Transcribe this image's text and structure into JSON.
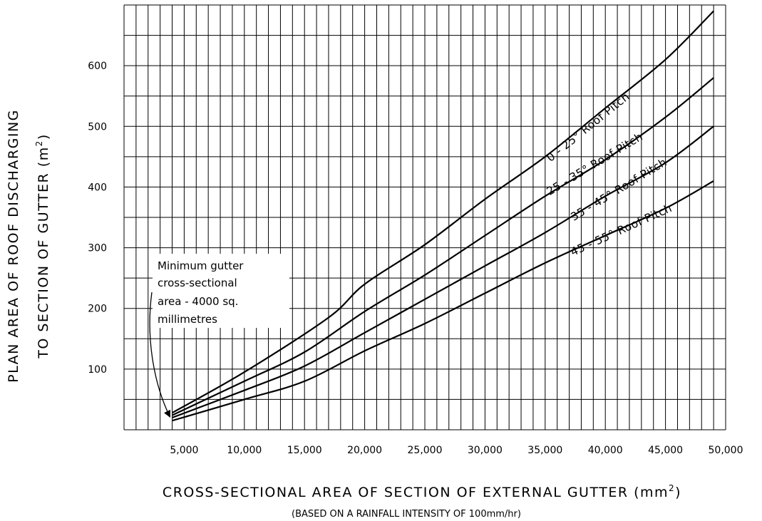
{
  "chart_data": {
    "type": "line",
    "x_ticks": [
      "5,000",
      "10,000",
      "15,000",
      "20,000",
      "25,000",
      "30,000",
      "35,000",
      "40,000",
      "45,000",
      "50,000"
    ],
    "y_ticks": [
      "100",
      "200",
      "300",
      "400",
      "500",
      "600"
    ],
    "xlabel_main": "CROSS-SECTIONAL AREA OF SECTION OF EXTERNAL GUTTER (mm",
    "xlabel_sup": "2",
    "xlabel_end": ")",
    "xlabel_sub": "(BASED ON A RAINFALL INTENSITY OF 100mm/hr)",
    "ylabel_line1": "PLAN AREA OF ROOF DISCHARGING",
    "ylabel_line2_main": "TO SECTION OF GUTTER (m",
    "ylabel_line2_sup": "2",
    "ylabel_line2_end": ")",
    "xlim": [
      0,
      50000
    ],
    "ylim": [
      0,
      700
    ],
    "grid": true,
    "grid_x_step": 1000,
    "grid_y_step": 50,
    "series": [
      {
        "name": "0 - 25° Roof Pitch",
        "x": [
          4000,
          10000,
          17000,
          20000,
          25000,
          30000,
          35000,
          40000,
          45000,
          49000
        ],
        "y": [
          28,
          95,
          185,
          240,
          305,
          380,
          450,
          530,
          610,
          690
        ]
      },
      {
        "name": "25 - 35° Roof Pitch",
        "x": [
          4000,
          10000,
          15000,
          20000,
          25000,
          30000,
          35000,
          40000,
          45000,
          49000
        ],
        "y": [
          24,
          80,
          128,
          195,
          255,
          320,
          385,
          445,
          515,
          580
        ]
      },
      {
        "name": "35 - 45° Roof Pitch",
        "x": [
          4000,
          10000,
          15000,
          20000,
          25000,
          30000,
          35000,
          40000,
          45000,
          49000
        ],
        "y": [
          20,
          65,
          105,
          160,
          215,
          270,
          325,
          385,
          440,
          500
        ]
      },
      {
        "name": "45 - 55° Roof Pitch",
        "x": [
          4000,
          10000,
          15000,
          20000,
          25000,
          30000,
          35000,
          40000,
          45000,
          49000
        ],
        "y": [
          15,
          50,
          80,
          130,
          175,
          225,
          275,
          320,
          365,
          410
        ]
      }
    ],
    "annotation": {
      "lines": [
        "Minimum gutter",
        "cross-sectional",
        "area - 4000 sq.",
        "millimetres"
      ],
      "x": 4000
    }
  }
}
